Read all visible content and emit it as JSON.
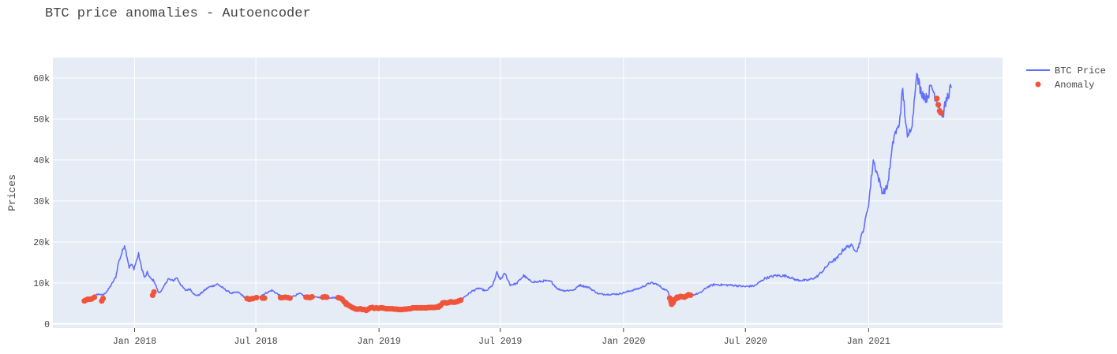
{
  "chart_data": {
    "type": "line",
    "title": "BTC price anomalies - Autoencoder",
    "xlabel": "",
    "ylabel": "Prices",
    "xlim": [
      "2017-09-01",
      "2021-07-20"
    ],
    "ylim": [
      -1000,
      65000
    ],
    "grid": true,
    "legend_position": "top-right",
    "colors": {
      "plot_bg": "#E5ECF6",
      "grid": "#FFFFFF",
      "line": "#636EFA",
      "marker": "#EF553B"
    },
    "x_ticks": [
      {
        "date": "2018-01-01",
        "label": "Jan 2018"
      },
      {
        "date": "2018-07-01",
        "label": "Jul 2018"
      },
      {
        "date": "2019-01-01",
        "label": "Jan 2019"
      },
      {
        "date": "2019-07-01",
        "label": "Jul 2019"
      },
      {
        "date": "2020-01-01",
        "label": "Jan 2020"
      },
      {
        "date": "2020-07-01",
        "label": "Jul 2020"
      },
      {
        "date": "2021-01-01",
        "label": "Jan 2021"
      }
    ],
    "y_ticks": [
      {
        "value": 0,
        "label": "0"
      },
      {
        "value": 10000,
        "label": "10k"
      },
      {
        "value": 20000,
        "label": "20k"
      },
      {
        "value": 30000,
        "label": "30k"
      },
      {
        "value": 40000,
        "label": "40k"
      },
      {
        "value": 50000,
        "label": "50k"
      },
      {
        "value": 60000,
        "label": "60k"
      }
    ],
    "series": [
      {
        "name": "BTC Price",
        "mode": "line",
        "x": [
          "2017-10-18",
          "2017-10-25",
          "2017-11-01",
          "2017-11-08",
          "2017-11-15",
          "2017-11-22",
          "2017-11-29",
          "2017-12-04",
          "2017-12-08",
          "2017-12-12",
          "2017-12-17",
          "2017-12-20",
          "2017-12-24",
          "2017-12-27",
          "2017-12-31",
          "2018-01-03",
          "2018-01-07",
          "2018-01-11",
          "2018-01-16",
          "2018-01-20",
          "2018-01-25",
          "2018-01-30",
          "2018-02-06",
          "2018-02-12",
          "2018-02-20",
          "2018-02-27",
          "2018-03-05",
          "2018-03-12",
          "2018-03-18",
          "2018-03-25",
          "2018-04-01",
          "2018-04-07",
          "2018-04-14",
          "2018-04-21",
          "2018-04-28",
          "2018-05-05",
          "2018-05-15",
          "2018-05-25",
          "2018-06-05",
          "2018-06-15",
          "2018-06-25",
          "2018-07-05",
          "2018-07-15",
          "2018-07-25",
          "2018-08-05",
          "2018-08-15",
          "2018-08-25",
          "2018-09-05",
          "2018-09-15",
          "2018-09-25",
          "2018-10-05",
          "2018-10-20",
          "2018-11-05",
          "2018-11-15",
          "2018-11-20",
          "2018-11-25",
          "2018-12-05",
          "2018-12-15",
          "2018-12-25",
          "2019-01-05",
          "2019-01-20",
          "2019-02-05",
          "2019-02-20",
          "2019-03-05",
          "2019-03-20",
          "2019-04-02",
          "2019-04-15",
          "2019-05-01",
          "2019-05-12",
          "2019-05-20",
          "2019-05-30",
          "2019-06-10",
          "2019-06-20",
          "2019-06-26",
          "2019-07-01",
          "2019-07-08",
          "2019-07-16",
          "2019-07-25",
          "2019-08-05",
          "2019-08-15",
          "2019-08-25",
          "2019-09-05",
          "2019-09-15",
          "2019-09-25",
          "2019-10-05",
          "2019-10-20",
          "2019-10-27",
          "2019-11-10",
          "2019-11-25",
          "2019-12-10",
          "2019-12-25",
          "2020-01-10",
          "2020-01-25",
          "2020-02-10",
          "2020-02-20",
          "2020-03-01",
          "2020-03-08",
          "2020-03-12",
          "2020-03-16",
          "2020-03-25",
          "2020-04-05",
          "2020-04-15",
          "2020-04-25",
          "2020-05-05",
          "2020-05-15",
          "2020-05-30",
          "2020-06-15",
          "2020-06-30",
          "2020-07-15",
          "2020-07-30",
          "2020-08-15",
          "2020-09-01",
          "2020-09-15",
          "2020-10-01",
          "2020-10-15",
          "2020-10-25",
          "2020-11-05",
          "2020-11-15",
          "2020-11-25",
          "2020-12-05",
          "2020-12-15",
          "2020-12-25",
          "2021-01-01",
          "2021-01-08",
          "2021-01-15",
          "2021-01-22",
          "2021-01-29",
          "2021-02-08",
          "2021-02-15",
          "2021-02-21",
          "2021-02-28",
          "2021-03-08",
          "2021-03-13",
          "2021-03-20",
          "2021-03-28",
          "2021-04-05",
          "2021-04-14",
          "2021-04-22",
          "2021-04-28",
          "2021-05-01",
          "2021-05-05"
        ],
        "y": [
          5500,
          5800,
          6700,
          7300,
          7000,
          8200,
          10000,
          11500,
          15000,
          16800,
          19300,
          17000,
          13800,
          14500,
          13500,
          15000,
          17000,
          14000,
          11200,
          12500,
          11000,
          10500,
          7500,
          8500,
          11000,
          10500,
          11300,
          9300,
          8200,
          8500,
          7000,
          7000,
          8000,
          8900,
          9300,
          9700,
          8500,
          7500,
          7700,
          6400,
          6100,
          6600,
          7400,
          8200,
          7000,
          6300,
          6700,
          7400,
          6500,
          6500,
          6500,
          6400,
          6400,
          5500,
          4500,
          3800,
          3500,
          3300,
          3800,
          3800,
          3500,
          3400,
          3900,
          3800,
          4000,
          5000,
          5100,
          5700,
          7000,
          8000,
          8700,
          8000,
          9500,
          12500,
          10800,
          12300,
          9500,
          9800,
          11800,
          10400,
          10200,
          10500,
          10300,
          8500,
          8100,
          8300,
          9500,
          8900,
          7300,
          7200,
          7300,
          8000,
          8700,
          10000,
          9700,
          8500,
          7900,
          5000,
          5300,
          6600,
          6800,
          7100,
          7600,
          9000,
          9600,
          9500,
          9400,
          9100,
          9300,
          11100,
          11800,
          11700,
          10700,
          10600,
          11400,
          13000,
          15100,
          16000,
          18300,
          19200,
          17800,
          23500,
          29300,
          40000,
          36000,
          32000,
          33400,
          46000,
          48000,
          57000,
          45000,
          50000,
          61000,
          57000,
          55000,
          58000,
          54000,
          51000,
          55000,
          56500,
          58000
        ]
      },
      {
        "name": "Anomaly",
        "mode": "markers",
        "x": [
          "2017-10-18",
          "2017-10-20",
          "2017-10-23",
          "2017-10-26",
          "2017-10-29",
          "2017-11-02",
          "2017-11-13",
          "2017-11-15",
          "2018-01-28",
          "2018-01-30",
          "2018-06-18",
          "2018-06-21",
          "2018-06-24",
          "2018-06-27",
          "2018-07-02",
          "2018-07-11",
          "2018-07-14",
          "2018-08-07",
          "2018-08-10",
          "2018-08-14",
          "2018-08-18",
          "2018-08-21",
          "2018-09-14",
          "2018-09-17",
          "2018-09-20",
          "2018-09-23",
          "2018-10-09",
          "2018-10-12",
          "2018-10-15",
          "2018-11-01",
          "2018-11-04",
          "2018-11-07",
          "2018-11-10",
          "2018-11-13",
          "2018-11-16",
          "2018-11-19",
          "2018-11-22",
          "2018-11-25",
          "2018-11-28",
          "2018-12-01",
          "2018-12-04",
          "2018-12-07",
          "2018-12-10",
          "2018-12-13",
          "2018-12-16",
          "2018-12-19",
          "2018-12-22",
          "2018-12-25",
          "2018-12-28",
          "2018-12-31",
          "2019-01-03",
          "2019-01-06",
          "2019-01-09",
          "2019-01-12",
          "2019-01-15",
          "2019-01-18",
          "2019-01-21",
          "2019-01-24",
          "2019-01-27",
          "2019-01-30",
          "2019-02-02",
          "2019-02-05",
          "2019-02-08",
          "2019-02-11",
          "2019-02-14",
          "2019-02-17",
          "2019-02-20",
          "2019-02-23",
          "2019-02-26",
          "2019-03-01",
          "2019-03-04",
          "2019-03-07",
          "2019-03-10",
          "2019-03-13",
          "2019-03-16",
          "2019-03-19",
          "2019-03-22",
          "2019-03-25",
          "2019-03-28",
          "2019-03-31",
          "2019-04-03",
          "2019-04-06",
          "2019-04-09",
          "2019-04-12",
          "2019-04-15",
          "2019-04-18",
          "2019-04-21",
          "2019-04-24",
          "2019-04-27",
          "2019-04-30",
          "2019-05-03",
          "2020-03-10",
          "2020-03-12",
          "2020-03-13",
          "2020-03-15",
          "2020-03-17",
          "2020-03-19",
          "2020-03-21",
          "2020-03-23",
          "2020-03-26",
          "2020-03-29",
          "2020-04-01",
          "2020-04-04",
          "2020-04-07",
          "2020-04-10",
          "2021-04-13",
          "2021-04-15",
          "2021-04-17",
          "2021-04-19"
        ],
        "y": [
          5600,
          5800,
          6000,
          6000,
          6100,
          6500,
          5600,
          6200,
          7000,
          7800,
          6200,
          6000,
          6100,
          6200,
          6400,
          6300,
          6300,
          6400,
          6400,
          6500,
          6400,
          6300,
          6500,
          6500,
          6400,
          6600,
          6500,
          6600,
          6500,
          6400,
          6300,
          6000,
          5400,
          4800,
          4600,
          4300,
          4000,
          3800,
          3600,
          3600,
          3700,
          3500,
          3500,
          3300,
          3600,
          3900,
          4000,
          3800,
          3900,
          3800,
          3900,
          3900,
          3800,
          3700,
          3700,
          3700,
          3700,
          3600,
          3600,
          3500,
          3500,
          3500,
          3600,
          3600,
          3700,
          3700,
          3900,
          3900,
          3900,
          3900,
          3900,
          3900,
          3900,
          3900,
          4000,
          4000,
          4000,
          4000,
          4100,
          4100,
          4500,
          5100,
          5200,
          5100,
          5200,
          5400,
          5300,
          5300,
          5400,
          5600,
          5800,
          6300,
          5400,
          4800,
          5200,
          5900,
          6100,
          6500,
          6400,
          6700,
          6600,
          6500,
          6800,
          7100,
          7000,
          55000,
          53500,
          52000,
          51500
        ]
      }
    ]
  }
}
